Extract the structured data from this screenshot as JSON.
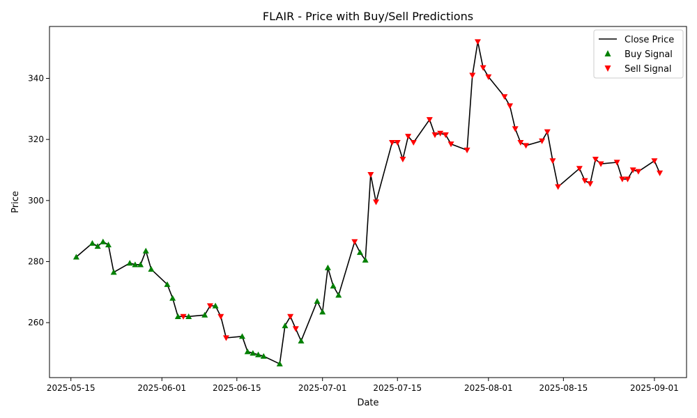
{
  "chart_data": {
    "type": "line",
    "title": "FLAIR - Price with Buy/Sell Predictions",
    "xlabel": "Date",
    "ylabel": "Price",
    "x_ticks": [
      "2025-05-15",
      "2025-06-01",
      "2025-06-15",
      "2025-07-01",
      "2025-07-15",
      "2025-08-01",
      "2025-08-15",
      "2025-09-01"
    ],
    "y_ticks": [
      260,
      280,
      300,
      320,
      340
    ],
    "xlim": [
      "2025-05-11",
      "2025-09-07"
    ],
    "ylim": [
      242,
      357
    ],
    "legend_position": "top-right",
    "grid": false,
    "series": [
      {
        "name": "Close Price",
        "kind": "line",
        "color": "#000000",
        "points": [
          [
            "2025-05-16",
            281.5
          ],
          [
            "2025-05-19",
            286.0
          ],
          [
            "2025-05-20",
            285.0
          ],
          [
            "2025-05-21",
            286.5
          ],
          [
            "2025-05-22",
            285.5
          ],
          [
            "2025-05-23",
            276.5
          ],
          [
            "2025-05-26",
            279.5
          ],
          [
            "2025-05-27",
            279.0
          ],
          [
            "2025-05-28",
            279.0
          ],
          [
            "2025-05-29",
            283.5
          ],
          [
            "2025-05-30",
            277.5
          ],
          [
            "2025-06-02",
            272.5
          ],
          [
            "2025-06-03",
            268.0
          ],
          [
            "2025-06-04",
            262.0
          ],
          [
            "2025-06-05",
            262.0
          ],
          [
            "2025-06-06",
            262.0
          ],
          [
            "2025-06-09",
            262.5
          ],
          [
            "2025-06-10",
            265.5
          ],
          [
            "2025-06-11",
            265.5
          ],
          [
            "2025-06-12",
            262.0
          ],
          [
            "2025-06-13",
            255.0
          ],
          [
            "2025-06-16",
            255.5
          ],
          [
            "2025-06-17",
            250.5
          ],
          [
            "2025-06-18",
            250.0
          ],
          [
            "2025-06-19",
            249.5
          ],
          [
            "2025-06-20",
            249.0
          ],
          [
            "2025-06-23",
            246.5
          ],
          [
            "2025-06-24",
            259.0
          ],
          [
            "2025-06-25",
            262.0
          ],
          [
            "2025-06-26",
            258.0
          ],
          [
            "2025-06-27",
            254.0
          ],
          [
            "2025-06-30",
            267.0
          ],
          [
            "2025-07-01",
            263.5
          ],
          [
            "2025-07-02",
            278.0
          ],
          [
            "2025-07-03",
            272.0
          ],
          [
            "2025-07-04",
            269.0
          ],
          [
            "2025-07-07",
            286.5
          ],
          [
            "2025-07-08",
            283.0
          ],
          [
            "2025-07-09",
            280.5
          ],
          [
            "2025-07-10",
            308.5
          ],
          [
            "2025-07-11",
            299.5
          ],
          [
            "2025-07-14",
            319.0
          ],
          [
            "2025-07-15",
            319.0
          ],
          [
            "2025-07-16",
            313.5
          ],
          [
            "2025-07-17",
            321.0
          ],
          [
            "2025-07-18",
            319.0
          ],
          [
            "2025-07-21",
            326.5
          ],
          [
            "2025-07-22",
            321.5
          ],
          [
            "2025-07-23",
            322.0
          ],
          [
            "2025-07-24",
            321.5
          ],
          [
            "2025-07-25",
            318.5
          ],
          [
            "2025-07-28",
            316.5
          ],
          [
            "2025-07-29",
            341.0
          ],
          [
            "2025-07-30",
            352.0
          ],
          [
            "2025-07-31",
            343.5
          ],
          [
            "2025-08-01",
            340.5
          ],
          [
            "2025-08-04",
            334.0
          ],
          [
            "2025-08-05",
            331.0
          ],
          [
            "2025-08-06",
            323.5
          ],
          [
            "2025-08-07",
            319.0
          ],
          [
            "2025-08-08",
            318.0
          ],
          [
            "2025-08-11",
            319.5
          ],
          [
            "2025-08-12",
            322.5
          ],
          [
            "2025-08-13",
            313.0
          ],
          [
            "2025-08-14",
            304.5
          ],
          [
            "2025-08-18",
            310.5
          ],
          [
            "2025-08-19",
            306.5
          ],
          [
            "2025-08-20",
            305.5
          ],
          [
            "2025-08-21",
            313.5
          ],
          [
            "2025-08-22",
            312.0
          ],
          [
            "2025-08-25",
            312.5
          ],
          [
            "2025-08-26",
            307.0
          ],
          [
            "2025-08-27",
            307.0
          ],
          [
            "2025-08-28",
            310.0
          ],
          [
            "2025-08-29",
            309.5
          ],
          [
            "2025-09-01",
            313.0
          ],
          [
            "2025-09-02",
            309.0
          ]
        ]
      },
      {
        "name": "Buy Signal",
        "kind": "scatter",
        "marker": "triangle-up",
        "color": "#008000",
        "points": [
          [
            "2025-05-16",
            281.5
          ],
          [
            "2025-05-19",
            286.0
          ],
          [
            "2025-05-20",
            285.0
          ],
          [
            "2025-05-21",
            286.5
          ],
          [
            "2025-05-22",
            285.5
          ],
          [
            "2025-05-23",
            276.5
          ],
          [
            "2025-05-26",
            279.5
          ],
          [
            "2025-05-27",
            279.0
          ],
          [
            "2025-05-28",
            279.0
          ],
          [
            "2025-05-29",
            283.5
          ],
          [
            "2025-05-30",
            277.5
          ],
          [
            "2025-06-02",
            272.5
          ],
          [
            "2025-06-03",
            268.0
          ],
          [
            "2025-06-04",
            262.0
          ],
          [
            "2025-06-06",
            262.0
          ],
          [
            "2025-06-09",
            262.5
          ],
          [
            "2025-06-11",
            265.5
          ],
          [
            "2025-06-16",
            255.5
          ],
          [
            "2025-06-17",
            250.5
          ],
          [
            "2025-06-18",
            250.0
          ],
          [
            "2025-06-19",
            249.5
          ],
          [
            "2025-06-20",
            249.0
          ],
          [
            "2025-06-23",
            246.5
          ],
          [
            "2025-06-24",
            259.0
          ],
          [
            "2025-06-27",
            254.0
          ],
          [
            "2025-06-30",
            267.0
          ],
          [
            "2025-07-01",
            263.5
          ],
          [
            "2025-07-02",
            278.0
          ],
          [
            "2025-07-03",
            272.0
          ],
          [
            "2025-07-04",
            269.0
          ],
          [
            "2025-07-08",
            283.0
          ],
          [
            "2025-07-09",
            280.5
          ]
        ]
      },
      {
        "name": "Sell Signal",
        "kind": "scatter",
        "marker": "triangle-down",
        "color": "#ff0000",
        "points": [
          [
            "2025-06-05",
            262.0
          ],
          [
            "2025-06-10",
            265.5
          ],
          [
            "2025-06-12",
            262.0
          ],
          [
            "2025-06-13",
            255.0
          ],
          [
            "2025-06-25",
            262.0
          ],
          [
            "2025-06-26",
            258.0
          ],
          [
            "2025-07-07",
            286.5
          ],
          [
            "2025-07-10",
            308.5
          ],
          [
            "2025-07-11",
            299.5
          ],
          [
            "2025-07-14",
            319.0
          ],
          [
            "2025-07-15",
            319.0
          ],
          [
            "2025-07-16",
            313.5
          ],
          [
            "2025-07-17",
            321.0
          ],
          [
            "2025-07-18",
            319.0
          ],
          [
            "2025-07-21",
            326.5
          ],
          [
            "2025-07-22",
            321.5
          ],
          [
            "2025-07-23",
            322.0
          ],
          [
            "2025-07-24",
            321.5
          ],
          [
            "2025-07-25",
            318.5
          ],
          [
            "2025-07-28",
            316.5
          ],
          [
            "2025-07-29",
            341.0
          ],
          [
            "2025-07-30",
            352.0
          ],
          [
            "2025-07-31",
            343.5
          ],
          [
            "2025-08-01",
            340.5
          ],
          [
            "2025-08-04",
            334.0
          ],
          [
            "2025-08-05",
            331.0
          ],
          [
            "2025-08-06",
            323.5
          ],
          [
            "2025-08-07",
            319.0
          ],
          [
            "2025-08-08",
            318.0
          ],
          [
            "2025-08-11",
            319.5
          ],
          [
            "2025-08-12",
            322.5
          ],
          [
            "2025-08-13",
            313.0
          ],
          [
            "2025-08-14",
            304.5
          ],
          [
            "2025-08-18",
            310.5
          ],
          [
            "2025-08-19",
            306.5
          ],
          [
            "2025-08-20",
            305.5
          ],
          [
            "2025-08-21",
            313.5
          ],
          [
            "2025-08-22",
            312.0
          ],
          [
            "2025-08-25",
            312.5
          ],
          [
            "2025-08-26",
            307.0
          ],
          [
            "2025-08-27",
            307.0
          ],
          [
            "2025-08-28",
            310.0
          ],
          [
            "2025-08-29",
            309.5
          ],
          [
            "2025-09-01",
            313.0
          ],
          [
            "2025-09-02",
            309.0
          ]
        ]
      }
    ]
  }
}
